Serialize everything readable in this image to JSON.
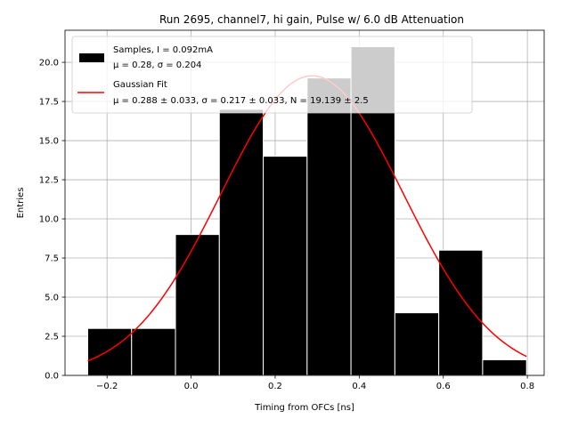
{
  "chart_data": {
    "type": "bar",
    "title": "Run 2695, channel7, hi gain, Pulse w/ 6.0 dB Attenuation",
    "xlabel": "Timing from OFCs [ns]",
    "ylabel": "Entries",
    "xlim": [
      -0.3,
      0.84
    ],
    "ylim": [
      0,
      22.05
    ],
    "grid": true,
    "legend_position": "top-left",
    "colors": {
      "bars": "#000000",
      "bar_edge": "#ffffff",
      "fit": "#ff0000",
      "grid": "#b0b0b0"
    },
    "histogram": {
      "bin_edges": [
        -0.246,
        -0.1416,
        -0.0372,
        0.0672,
        0.1716,
        0.276,
        0.3804,
        0.4848,
        0.5892,
        0.6936,
        0.798
      ],
      "counts": [
        3,
        3,
        9,
        17,
        14,
        19,
        21,
        4,
        8,
        1
      ]
    },
    "fit": {
      "mu": 0.288,
      "sigma": 0.217,
      "amplitude": 19.139,
      "x_range": [
        -0.246,
        0.798
      ]
    },
    "x_ticks": [
      {
        "value": -0.2,
        "label": "−0.2"
      },
      {
        "value": 0.0,
        "label": "0.0"
      },
      {
        "value": 0.2,
        "label": "0.2"
      },
      {
        "value": 0.4,
        "label": "0.4"
      },
      {
        "value": 0.6,
        "label": "0.6"
      },
      {
        "value": 0.8,
        "label": "0.8"
      }
    ],
    "y_ticks": [
      {
        "value": 0,
        "label": "0.0"
      },
      {
        "value": 2.5,
        "label": "2.5"
      },
      {
        "value": 5,
        "label": "5.0"
      },
      {
        "value": 7.5,
        "label": "7.5"
      },
      {
        "value": 10,
        "label": "10.0"
      },
      {
        "value": 12.5,
        "label": "12.5"
      },
      {
        "value": 15,
        "label": "15.0"
      },
      {
        "value": 17.5,
        "label": "17.5"
      },
      {
        "value": 20,
        "label": "20.0"
      }
    ],
    "legend": {
      "samples_line1": "Samples, I = 0.092mA",
      "samples_line2": "μ = 0.28, σ = 0.204",
      "fit_line1": "Gaussian Fit",
      "fit_line2": "μ = 0.288 ± 0.033, σ = 0.217 ± 0.033, N = 19.139 ± 2.5"
    }
  }
}
